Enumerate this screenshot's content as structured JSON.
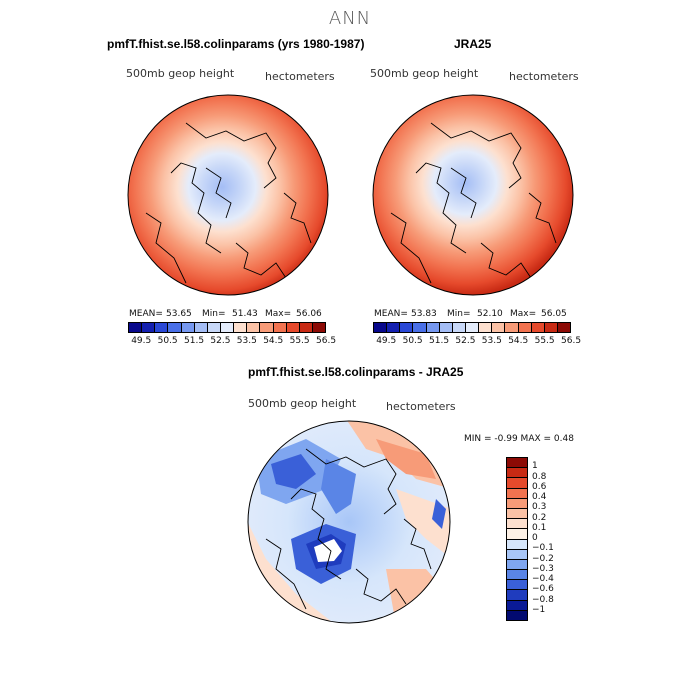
{
  "figure": {
    "title": "ANN"
  },
  "chart_data": [
    {
      "type": "heatmap",
      "title": "pmfT.fhist.se.l58.colinparams (yrs 1980-1987)",
      "variable": "500mb geop height",
      "units": "hectometers",
      "stats": {
        "mean_label": "MEAN=",
        "mean": "53.65",
        "min_label": "Min=",
        "min": "51.43",
        "max_label": "Max=",
        "max": "56.06"
      },
      "levels": [
        49.5,
        50.0,
        50.5,
        51.0,
        51.5,
        52.0,
        52.5,
        53.0,
        53.5,
        54.0,
        54.5,
        55.0,
        55.5,
        56.0,
        56.5
      ],
      "tick_labels": [
        "49.5",
        "50.5",
        "51.5",
        "52.5",
        "53.5",
        "54.5",
        "55.5",
        "56.5"
      ],
      "colors": [
        "#08088c",
        "#1420b0",
        "#2a48d6",
        "#4a70e8",
        "#7698f0",
        "#a4bdf5",
        "#c8d8f8",
        "#e4ecfb",
        "#fde0cf",
        "#fbc2a6",
        "#f79b78",
        "#f27350",
        "#e64a2c",
        "#c82a14",
        "#8c0a05"
      ]
    },
    {
      "type": "heatmap",
      "title": "JRA25",
      "variable": "500mb geop height",
      "units": "hectometers",
      "stats": {
        "mean_label": "MEAN=",
        "mean": "53.83",
        "min_label": "Min=",
        "min": "52.10",
        "max_label": "Max=",
        "max": "56.05"
      },
      "levels": [
        49.5,
        50.0,
        50.5,
        51.0,
        51.5,
        52.0,
        52.5,
        53.0,
        53.5,
        54.0,
        54.5,
        55.0,
        55.5,
        56.0,
        56.5
      ],
      "tick_labels": [
        "49.5",
        "50.5",
        "51.5",
        "52.5",
        "53.5",
        "54.5",
        "55.5",
        "56.5"
      ],
      "colors": [
        "#08088c",
        "#1420b0",
        "#2a48d6",
        "#4a70e8",
        "#7698f0",
        "#a4bdf5",
        "#c8d8f8",
        "#e4ecfb",
        "#fde0cf",
        "#fbc2a6",
        "#f79b78",
        "#f27350",
        "#e64a2c",
        "#c82a14",
        "#8c0a05"
      ]
    },
    {
      "type": "heatmap",
      "title": "pmfT.fhist.se.l58.colinparams - JRA25",
      "variable": "500mb geop height",
      "units": "hectometers",
      "stats": {
        "text": "MIN =   -0.99  MAX =    0.48"
      },
      "tick_labels": [
        "1",
        "0.8",
        "0.6",
        "0.4",
        "0.3",
        "0.2",
        "0.1",
        "0",
        "−0.1",
        "−0.2",
        "−0.3",
        "−0.4",
        "−0.6",
        "−0.8",
        "−1"
      ],
      "colors": [
        "#8c0a05",
        "#c82a14",
        "#e64a2c",
        "#f27350",
        "#f79b78",
        "#fbc2a6",
        "#fde0cf",
        "#fdf1e6",
        "#d6e6fb",
        "#a8c6f7",
        "#7fa6f0",
        "#5a85e6",
        "#3a60d8",
        "#1f3cbe",
        "#0a1a96",
        "#020a70"
      ]
    }
  ]
}
